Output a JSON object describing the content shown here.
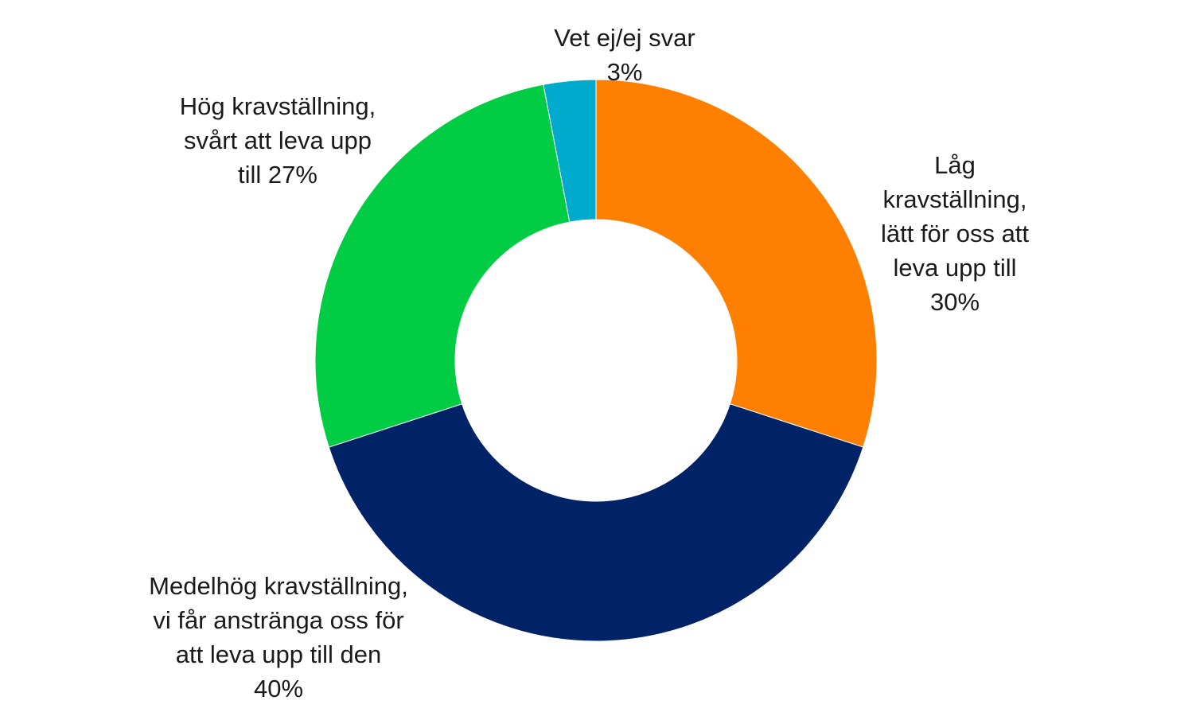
{
  "chart_data": {
    "type": "pie",
    "variant": "donut",
    "start_angle_deg": 0,
    "direction": "clockwise",
    "slices": [
      {
        "key": "lag",
        "label_lines": [
          "Låg",
          "kravställning,",
          "lätt för oss att",
          "leva upp till",
          "30%"
        ],
        "value": 30,
        "color": "#FF8000"
      },
      {
        "key": "medelhog",
        "label_lines": [
          "Medelhög kravställning,",
          "vi får anstränga oss för",
          "att leva upp till den",
          "40%"
        ],
        "value": 40,
        "color": "#002266"
      },
      {
        "key": "hog",
        "label_lines": [
          "Hög kravställning,",
          "svårt att leva upp",
          "till 27%"
        ],
        "value": 27,
        "color": "#00CC44"
      },
      {
        "key": "vetej",
        "label_lines": [
          "Vet ej/ej svar",
          "3%"
        ],
        "value": 3,
        "color": "#00AACC"
      }
    ]
  }
}
